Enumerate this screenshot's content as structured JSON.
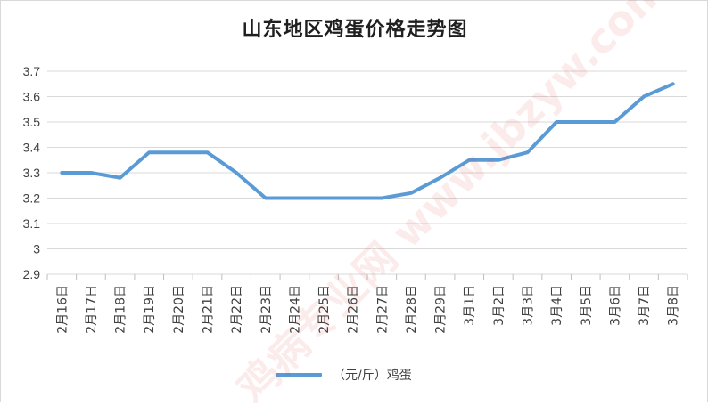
{
  "chart_data": {
    "type": "line",
    "title": "山东地区鸡蛋价格走势图",
    "categories": [
      "2月16日",
      "2月17日",
      "2月18日",
      "2月19日",
      "2月20日",
      "2月21日",
      "2月22日",
      "2月23日",
      "2月24日",
      "2月25日",
      "2月26日",
      "2月27日",
      "2月28日",
      "2月29日",
      "3月1日",
      "3月2日",
      "3月3日",
      "3月4日",
      "3月5日",
      "3月6日",
      "3月7日",
      "3月8日"
    ],
    "series": [
      {
        "name": "（元/斤）鸡蛋",
        "values": [
          3.3,
          3.3,
          3.28,
          3.38,
          3.38,
          3.38,
          3.3,
          3.2,
          3.2,
          3.2,
          3.2,
          3.2,
          3.22,
          3.28,
          3.35,
          3.35,
          3.38,
          3.5,
          3.5,
          3.5,
          3.6,
          3.65
        ]
      }
    ],
    "ylim": [
      2.9,
      3.7
    ],
    "yticks": [
      "2.9",
      "3",
      "3.1",
      "3.2",
      "3.3",
      "3.4",
      "3.5",
      "3.6",
      "3.7"
    ],
    "grid": true,
    "legend_position": "bottom",
    "line_color": "#5b9bd5"
  },
  "watermark_text": "鸡病专业网 www.jbzyw.com"
}
